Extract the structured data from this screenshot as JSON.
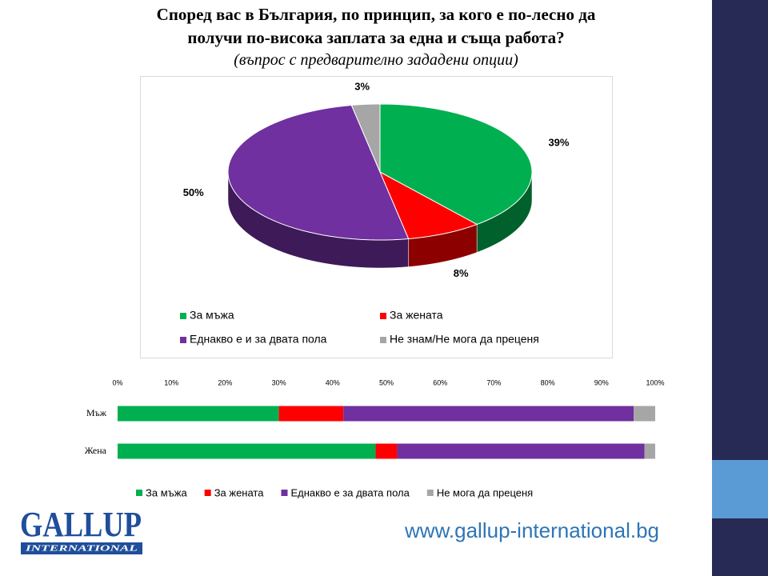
{
  "title": "Според вас в България, по принцип, за кого е по-лесно да получи по-висока заплата за една и съща работа?",
  "subtitle": "(въпрос с предварително зададени опции)",
  "chart_data": [
    {
      "type": "pie",
      "categories": [
        "За мъжа",
        "За жената",
        "Еднакво е и за двата пола",
        "Не знам/Не мога да преценя"
      ],
      "values": [
        39,
        8,
        50,
        3
      ],
      "value_labels": [
        "39%",
        "8%",
        "50%",
        "3%"
      ],
      "colors": [
        "#00b050",
        "#ff0000",
        "#7030a0",
        "#a6a6a6"
      ]
    },
    {
      "type": "bar",
      "orientation": "horizontal",
      "stacked": true,
      "categories": [
        "Мъж",
        "Жена"
      ],
      "series": [
        {
          "name": "За мъжа",
          "color": "#00b050",
          "values": [
            30,
            48
          ]
        },
        {
          "name": "За жената",
          "color": "#ff0000",
          "values": [
            12,
            4
          ]
        },
        {
          "name": "Еднакво е за двата пола",
          "color": "#7030a0",
          "values": [
            54,
            46
          ]
        },
        {
          "name": "Не мога да преценя",
          "color": "#a6a6a6",
          "values": [
            4,
            2
          ]
        }
      ],
      "xlim": [
        0,
        100
      ],
      "xticks": [
        {
          "value": 0,
          "label": "0%"
        },
        {
          "value": 10,
          "label": "10%"
        },
        {
          "value": 20,
          "label": "20%"
        },
        {
          "value": 30,
          "label": "30%"
        },
        {
          "value": 40,
          "label": "40%"
        },
        {
          "value": 50,
          "label": "50%"
        },
        {
          "value": 60,
          "label": "60%"
        },
        {
          "value": 70,
          "label": "70%"
        },
        {
          "value": 80,
          "label": "80%"
        },
        {
          "value": 90,
          "label": "90%"
        },
        {
          "value": 100,
          "label": "100%"
        }
      ],
      "grid": false
    }
  ],
  "footer": {
    "logo_main": "GALLUP",
    "logo_sub": "INTERNATIONAL",
    "url": "www.gallup-international.bg"
  }
}
